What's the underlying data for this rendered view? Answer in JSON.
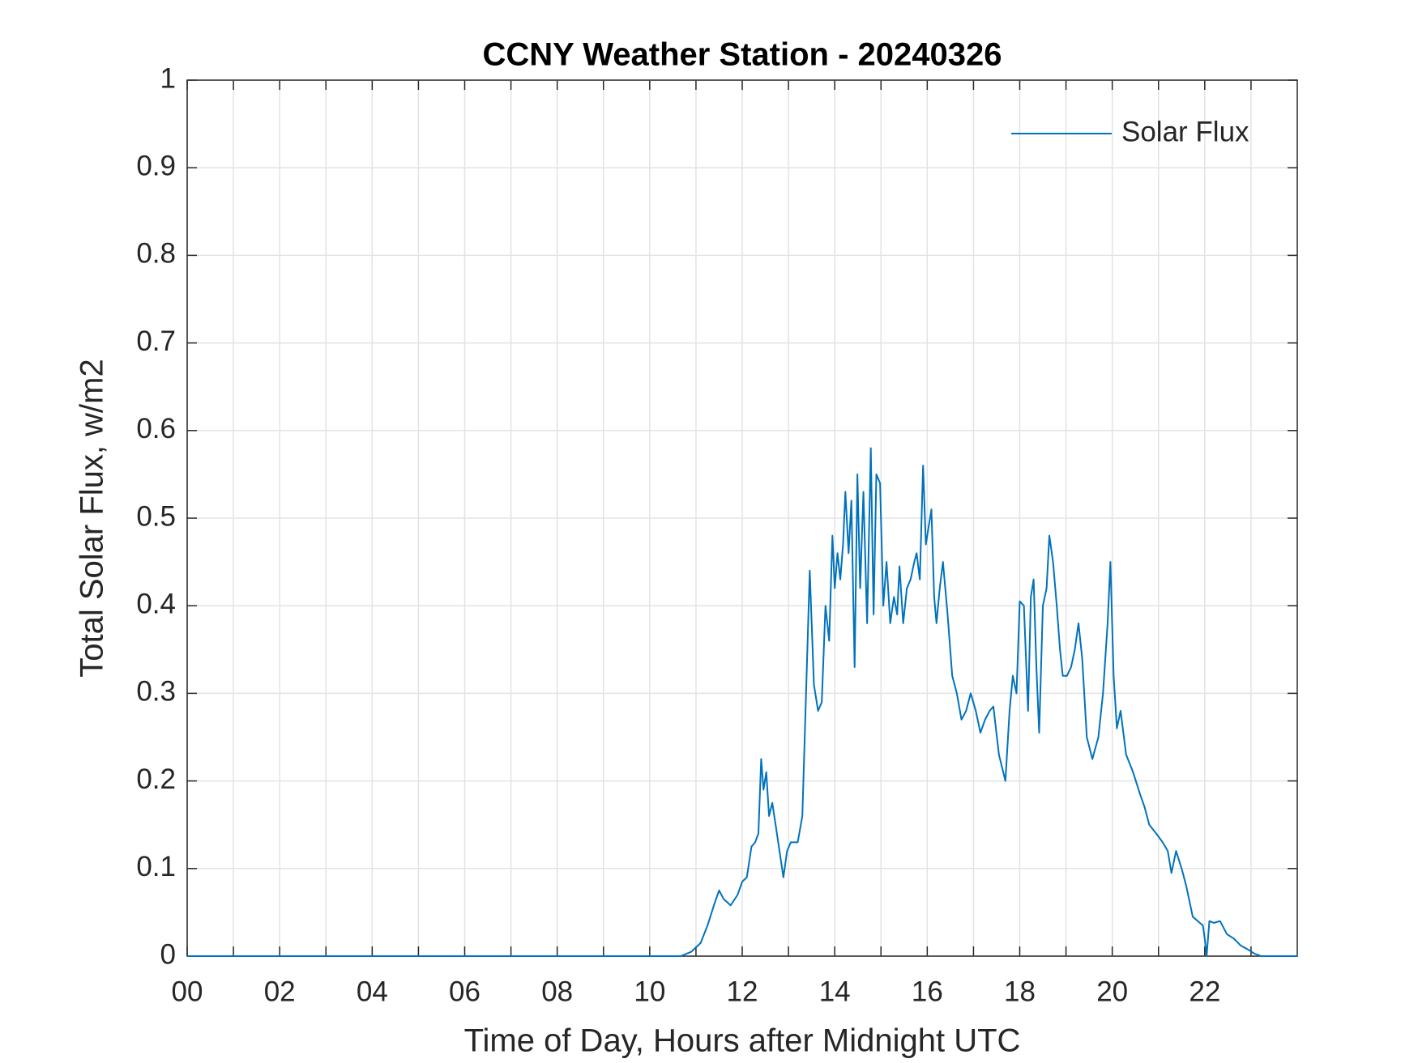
{
  "chart_data": {
    "type": "line",
    "title": "CCNY Weather Station - 20240326",
    "x_label": "Time of Day, Hours after Midnight UTC",
    "y_label": "Total Solar Flux, w/m2",
    "xlim": [
      0,
      24
    ],
    "xticks": [
      {
        "value": 0,
        "label": "00"
      },
      {
        "value": 2,
        "label": "02"
      },
      {
        "value": 4,
        "label": "04"
      },
      {
        "value": 6,
        "label": "06"
      },
      {
        "value": 8,
        "label": "08"
      },
      {
        "value": 10,
        "label": "10"
      },
      {
        "value": 12,
        "label": "12"
      },
      {
        "value": 14,
        "label": "14"
      },
      {
        "value": 16,
        "label": "16"
      },
      {
        "value": 18,
        "label": "18"
      },
      {
        "value": 20,
        "label": "20"
      },
      {
        "value": 22,
        "label": "22"
      }
    ],
    "xminorticks": [
      1,
      3,
      5,
      7,
      9,
      11,
      13,
      15,
      17,
      19,
      21,
      23
    ],
    "ylim": [
      0,
      1
    ],
    "yticks": [
      0,
      0.1,
      0.2,
      0.3,
      0.4,
      0.5,
      0.6,
      0.7,
      0.8,
      0.9,
      1
    ],
    "grid": true,
    "legend": "northeast",
    "series": [
      {
        "name": "Solar Flux",
        "color": "#0072bd",
        "x": [
          0,
          10.67,
          10.9,
          11.1,
          11.25,
          11.4,
          11.5,
          11.6,
          11.75,
          11.9,
          12.0,
          12.1,
          12.2,
          12.28,
          12.35,
          12.41,
          12.46,
          12.52,
          12.58,
          12.65,
          12.75,
          12.89,
          12.97,
          13.05,
          13.2,
          13.3,
          13.38,
          13.46,
          13.55,
          13.64,
          13.72,
          13.8,
          13.88,
          13.95,
          14.0,
          14.06,
          14.12,
          14.18,
          14.23,
          14.3,
          14.36,
          14.43,
          14.49,
          14.55,
          14.62,
          14.7,
          14.78,
          14.84,
          14.9,
          14.98,
          15.05,
          15.12,
          15.2,
          15.28,
          15.35,
          15.4,
          15.48,
          15.56,
          15.64,
          15.72,
          15.77,
          15.84,
          15.91,
          15.97,
          16.03,
          16.09,
          16.15,
          16.2,
          16.27,
          16.34,
          16.44,
          16.54,
          16.64,
          16.74,
          16.84,
          16.94,
          17.05,
          17.15,
          17.25,
          17.35,
          17.43,
          17.55,
          17.69,
          17.78,
          17.85,
          17.93,
          18.0,
          18.09,
          18.18,
          18.24,
          18.3,
          18.36,
          18.42,
          18.5,
          18.58,
          18.64,
          18.72,
          18.8,
          18.87,
          18.93,
          19.02,
          19.11,
          19.19,
          19.27,
          19.35,
          19.45,
          19.57,
          19.7,
          19.8,
          19.9,
          19.96,
          20.03,
          20.1,
          20.18,
          20.3,
          20.45,
          20.6,
          20.7,
          20.8,
          20.95,
          21.09,
          21.2,
          21.28,
          21.38,
          21.5,
          21.6,
          21.74,
          21.85,
          21.96,
          22.0,
          22.04,
          22.1,
          22.2,
          22.33,
          22.48,
          22.63,
          22.78,
          22.92,
          23.07,
          23.22,
          24
        ],
        "values": [
          0,
          0,
          0.005,
          0.015,
          0.035,
          0.06,
          0.075,
          0.065,
          0.058,
          0.07,
          0.085,
          0.09,
          0.125,
          0.13,
          0.14,
          0.225,
          0.19,
          0.21,
          0.16,
          0.175,
          0.14,
          0.09,
          0.12,
          0.13,
          0.13,
          0.16,
          0.3,
          0.44,
          0.31,
          0.28,
          0.29,
          0.4,
          0.36,
          0.48,
          0.42,
          0.46,
          0.43,
          0.47,
          0.53,
          0.46,
          0.52,
          0.33,
          0.55,
          0.42,
          0.53,
          0.38,
          0.58,
          0.39,
          0.55,
          0.54,
          0.4,
          0.45,
          0.38,
          0.41,
          0.39,
          0.445,
          0.38,
          0.42,
          0.43,
          0.45,
          0.46,
          0.43,
          0.56,
          0.47,
          0.49,
          0.51,
          0.41,
          0.38,
          0.42,
          0.45,
          0.39,
          0.32,
          0.3,
          0.27,
          0.28,
          0.3,
          0.28,
          0.255,
          0.27,
          0.28,
          0.285,
          0.23,
          0.2,
          0.28,
          0.32,
          0.3,
          0.405,
          0.4,
          0.28,
          0.41,
          0.43,
          0.33,
          0.255,
          0.4,
          0.42,
          0.48,
          0.45,
          0.4,
          0.35,
          0.32,
          0.32,
          0.33,
          0.35,
          0.38,
          0.34,
          0.25,
          0.225,
          0.25,
          0.3,
          0.38,
          0.45,
          0.32,
          0.26,
          0.28,
          0.23,
          0.21,
          0.185,
          0.17,
          0.15,
          0.14,
          0.13,
          0.12,
          0.095,
          0.12,
          0.1,
          0.08,
          0.045,
          0.04,
          0.035,
          0.02,
          0,
          0.04,
          0.038,
          0.04,
          0.025,
          0.02,
          0.012,
          0.008,
          0.003,
          0,
          0
        ]
      }
    ]
  }
}
